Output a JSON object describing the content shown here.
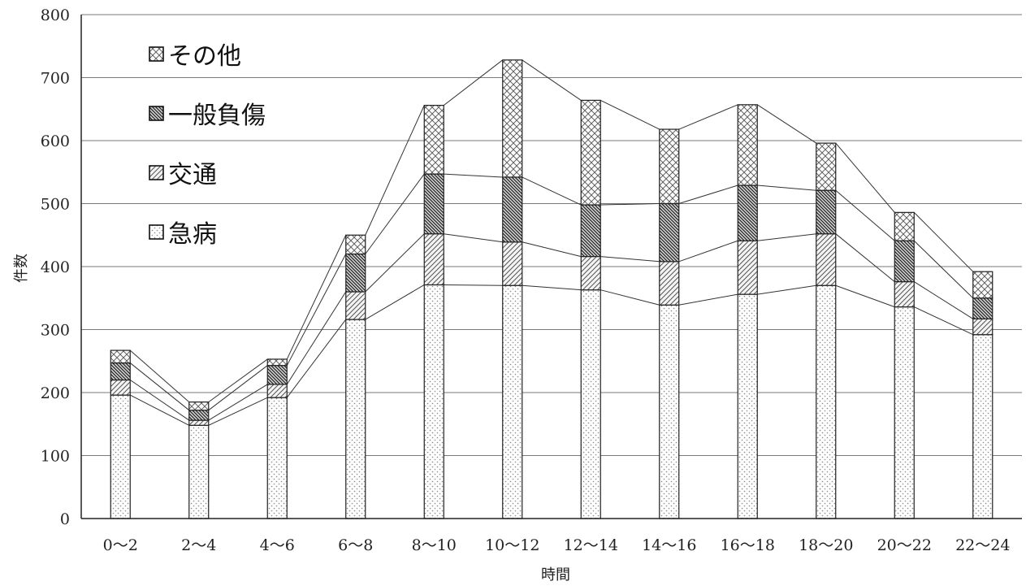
{
  "chart_data": {
    "type": "bar",
    "stacked": true,
    "with_connector_lines": true,
    "xlabel": "時間",
    "ylabel": "件数",
    "ylim": [
      0,
      800
    ],
    "yticks": [
      0,
      100,
      200,
      300,
      400,
      500,
      600,
      700,
      800
    ],
    "grid": true,
    "legend_position": "top-left",
    "categories": [
      "0〜2",
      "2〜4",
      "4〜6",
      "6〜8",
      "8〜10",
      "10〜12",
      "12〜14",
      "14〜16",
      "16〜18",
      "18〜20",
      "20〜22",
      "22〜24"
    ],
    "series": [
      {
        "name": "急病",
        "pattern": "dots",
        "values": [
          196,
          148,
          192,
          316,
          371,
          370,
          363,
          339,
          356,
          370,
          336,
          292
        ]
      },
      {
        "name": "交通",
        "pattern": "diagonal",
        "values": [
          24,
          8,
          21,
          44,
          81,
          69,
          53,
          69,
          85,
          82,
          40,
          25
        ]
      },
      {
        "name": "一般負傷",
        "pattern": "dense-diagonal",
        "values": [
          27,
          16,
          30,
          60,
          95,
          103,
          82,
          92,
          88,
          69,
          65,
          33
        ]
      },
      {
        "name": "その他",
        "pattern": "crosshatch",
        "values": [
          20,
          13,
          10,
          30,
          109,
          186,
          166,
          118,
          128,
          75,
          45,
          42
        ]
      }
    ]
  }
}
